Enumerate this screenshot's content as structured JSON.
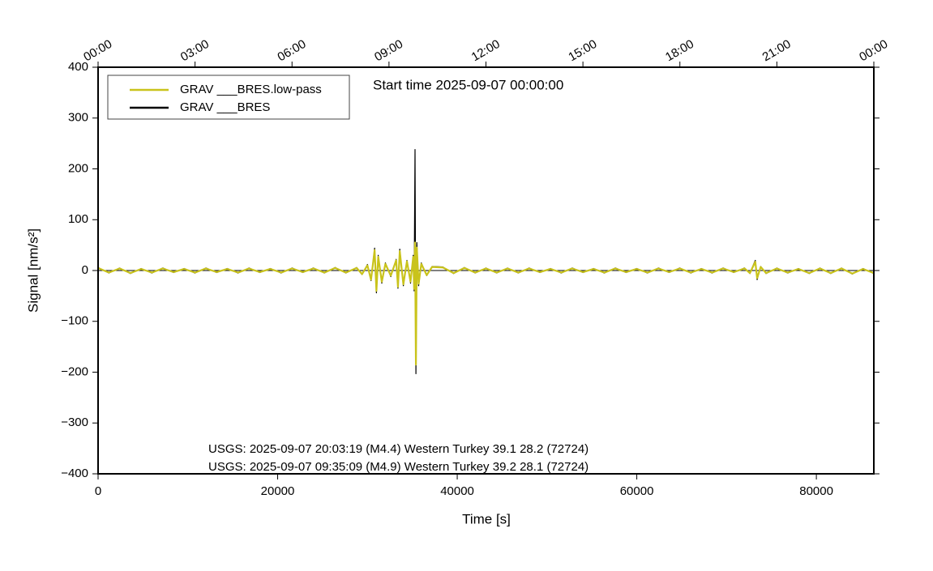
{
  "chart_data": {
    "type": "line",
    "title": "Start time 2025-09-07 00:00:00",
    "xlabel": "Time [s]",
    "ylabel": "Signal [nm/s²]",
    "annotations": [
      "USGS: 2025-09-07 20:03:19 (M4.4) Western Turkey 39.1 28.2 (72724)",
      "USGS: 2025-09-07 09:35:09 (M4.9) Western Turkey 39.2 28.1 (72724)"
    ],
    "xlim": [
      0,
      86400
    ],
    "ylim": [
      -400,
      400
    ],
    "xticks": [
      0,
      20000,
      40000,
      60000,
      80000
    ],
    "x2ticks": [
      {
        "value": 0,
        "label": "00:00"
      },
      {
        "value": 10800,
        "label": "03:00"
      },
      {
        "value": 21600,
        "label": "06:00"
      },
      {
        "value": 32400,
        "label": "09:00"
      },
      {
        "value": 43200,
        "label": "12:00"
      },
      {
        "value": 54000,
        "label": "15:00"
      },
      {
        "value": 64800,
        "label": "18:00"
      },
      {
        "value": 75600,
        "label": "21:00"
      },
      {
        "value": 86400,
        "label": "00:00"
      }
    ],
    "yticks": [
      {
        "value": -400,
        "label": "−400"
      },
      {
        "value": -300,
        "label": "−300"
      },
      {
        "value": -200,
        "label": "−200"
      },
      {
        "value": -100,
        "label": "−100"
      },
      0,
      100,
      200,
      300,
      400
    ],
    "legend": "upper left",
    "x": [
      0,
      1200,
      2400,
      3600,
      4800,
      6000,
      7200,
      8400,
      9600,
      10800,
      12000,
      13200,
      14400,
      15600,
      16800,
      18000,
      19200,
      20400,
      21600,
      22800,
      24000,
      25200,
      26400,
      27600,
      28800,
      29400,
      30000,
      30400,
      30800,
      31000,
      31200,
      31600,
      32000,
      32600,
      33200,
      33400,
      33600,
      34000,
      34400,
      34800,
      35100,
      35200,
      35300,
      35400,
      35500,
      35700,
      36000,
      36600,
      37200,
      38400,
      39600,
      40800,
      42000,
      43200,
      44400,
      45600,
      46800,
      48000,
      49200,
      50400,
      51600,
      52800,
      54000,
      55200,
      56400,
      57600,
      58800,
      60000,
      61200,
      62400,
      63600,
      64800,
      66000,
      67200,
      68400,
      69600,
      70800,
      72000,
      72600,
      73000,
      73200,
      73400,
      73800,
      74400,
      75600,
      76800,
      78000,
      79200,
      80400,
      81600,
      82800,
      84000,
      85200,
      86400
    ],
    "series": [
      {
        "name": "GRAV ___BRES.low-pass",
        "color": "#c9c31b",
        "values": [
          5,
          -4,
          4,
          -5,
          3,
          -4,
          4,
          -3,
          3,
          -4,
          4,
          -3,
          3,
          -4,
          4,
          -3,
          3,
          -4,
          4,
          -3,
          4,
          -4,
          5,
          -4,
          5,
          -7,
          10,
          -18,
          40,
          -40,
          27,
          -22,
          13,
          -10,
          20,
          -32,
          38,
          -27,
          18,
          -22,
          27,
          -36,
          55,
          -185,
          45,
          -26,
          13,
          -9,
          7,
          6,
          -5,
          5,
          -4,
          4,
          -4,
          4,
          -4,
          4,
          -3,
          3,
          -4,
          4,
          -3,
          3,
          -4,
          4,
          -3,
          3,
          -4,
          4,
          -3,
          4,
          -4,
          3,
          -4,
          4,
          -3,
          4,
          -5,
          10,
          17,
          -15,
          7,
          -5,
          4,
          -4,
          3,
          -5,
          4,
          -5,
          4,
          -6,
          3,
          -5
        ]
      },
      {
        "name": "GRAV ___BRES",
        "color": "#000000",
        "values": [
          6,
          -5,
          5,
          -6,
          4,
          -5,
          5,
          -4,
          4,
          -5,
          5,
          -4,
          4,
          -5,
          5,
          -4,
          4,
          -5,
          5,
          -4,
          5,
          -5,
          6,
          -5,
          6,
          -8,
          12,
          -20,
          44,
          -44,
          30,
          -25,
          15,
          -12,
          22,
          -35,
          42,
          -30,
          20,
          -25,
          30,
          -40,
          238,
          -203,
          55,
          -30,
          15,
          -10,
          8,
          7,
          -6,
          6,
          -5,
          5,
          -5,
          5,
          -5,
          5,
          -4,
          4,
          -5,
          5,
          -4,
          4,
          -5,
          5,
          -4,
          4,
          -5,
          5,
          -4,
          5,
          -5,
          4,
          -5,
          5,
          -4,
          5,
          -6,
          12,
          20,
          -18,
          8,
          -6,
          5,
          -5,
          4,
          -6,
          5,
          -6,
          5,
          -7,
          4,
          -6
        ]
      }
    ]
  }
}
